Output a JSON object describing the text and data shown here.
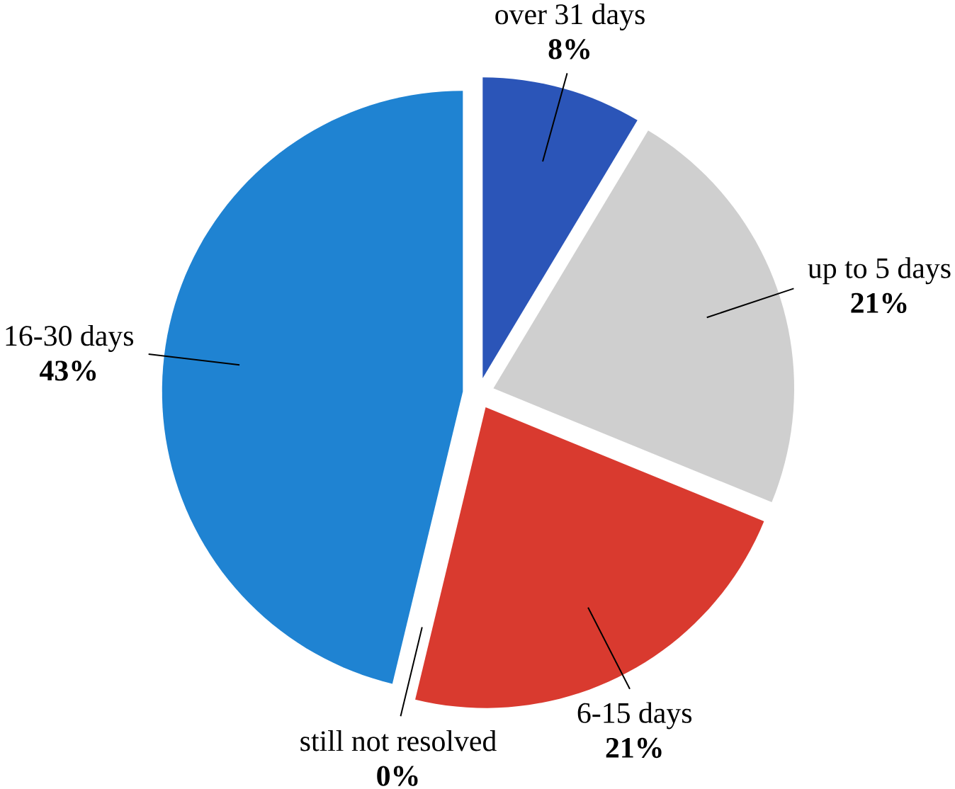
{
  "chart_data": {
    "type": "pie",
    "categories": [
      "over 31 days",
      "up to 5 days",
      "6-15 days",
      "still not resolved",
      "16-30 days"
    ],
    "values": [
      8,
      21,
      21,
      0,
      43
    ],
    "value_labels": [
      "8%",
      "21%",
      "21%",
      "0%",
      "43%"
    ],
    "colors": [
      "#2b55b8",
      "#cfcfcf",
      "#d93a2f",
      "#9a9a9a",
      "#1f83d2"
    ]
  }
}
